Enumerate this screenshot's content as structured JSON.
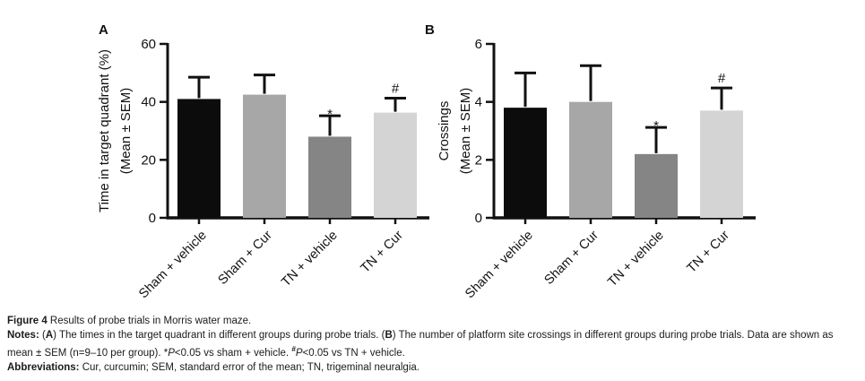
{
  "figure": {
    "background": "#ffffff",
    "axis_color": "#111111"
  },
  "chart_data": [
    {
      "type": "bar",
      "panel_label": "A",
      "title": "",
      "xlabel": "",
      "ylabel": "Time in target quadrant (%) (Mean ± SEM)",
      "ylabel_lines": [
        "Time in target quadrant (%)",
        "(Mean ± SEM)"
      ],
      "categories": [
        "Sham + vehicle",
        "Sham + Cur",
        "TN + vehicle",
        "TN + Cur"
      ],
      "values": [
        41,
        42.5,
        28,
        36.3
      ],
      "sem": [
        7.5,
        6.8,
        7.2,
        5.0
      ],
      "annotations": [
        "",
        "",
        "*",
        "#"
      ],
      "bar_colors": [
        "#0c0c0c",
        "#a7a7a7",
        "#858585",
        "#d4d4d4"
      ],
      "ylim": [
        0,
        60
      ],
      "yticks": [
        0,
        20,
        40,
        60
      ],
      "grid": false,
      "legend": "none"
    },
    {
      "type": "bar",
      "panel_label": "B",
      "title": "",
      "xlabel": "",
      "ylabel": "Crossings (Mean ± SEM)",
      "ylabel_lines": [
        "Crossings",
        "(Mean ± SEM)"
      ],
      "categories": [
        "Sham + vehicle",
        "Sham + Cur",
        "TN + vehicle",
        "TN + Cur"
      ],
      "values": [
        3.8,
        4.0,
        2.2,
        3.7
      ],
      "sem": [
        1.2,
        1.25,
        0.92,
        0.78
      ],
      "annotations": [
        "",
        "",
        "*",
        "#"
      ],
      "bar_colors": [
        "#0c0c0c",
        "#a7a7a7",
        "#858585",
        "#d4d4d4"
      ],
      "ylim": [
        0,
        6
      ],
      "yticks": [
        0,
        2,
        4,
        6
      ],
      "grid": false,
      "legend": "none"
    }
  ],
  "caption": {
    "lines": [
      {
        "name": "figure-title",
        "segments": [
          {
            "text": "Figure 4",
            "style": "bold"
          },
          {
            "text": " Results of probe trials in Morris water maze.",
            "style": "normal"
          }
        ]
      },
      {
        "name": "notes",
        "segments": [
          {
            "text": "Notes:",
            "style": "bold"
          },
          {
            "text": " (",
            "style": "normal"
          },
          {
            "text": "A",
            "style": "bold"
          },
          {
            "text": ") The times in the target quadrant in different groups during probe trials. (",
            "style": "normal"
          },
          {
            "text": "B",
            "style": "bold"
          },
          {
            "text": ") The number of platform site crossings in different groups during probe trials. Data are shown as mean ± SEM (n=9–10 per group). *",
            "style": "normal"
          },
          {
            "text": "P",
            "style": "italic"
          },
          {
            "text": "<0.05 vs sham + vehicle. ",
            "style": "normal"
          },
          {
            "text": "#",
            "style": "super"
          },
          {
            "text": "P",
            "style": "italic"
          },
          {
            "text": "<0.05 vs TN + vehicle.",
            "style": "normal"
          }
        ]
      },
      {
        "name": "abbreviations",
        "segments": [
          {
            "text": "Abbreviations:",
            "style": "bold"
          },
          {
            "text": " Cur, curcumin; SEM, standard error of the mean; TN, trigeminal neuralgia.",
            "style": "normal"
          }
        ]
      }
    ]
  }
}
